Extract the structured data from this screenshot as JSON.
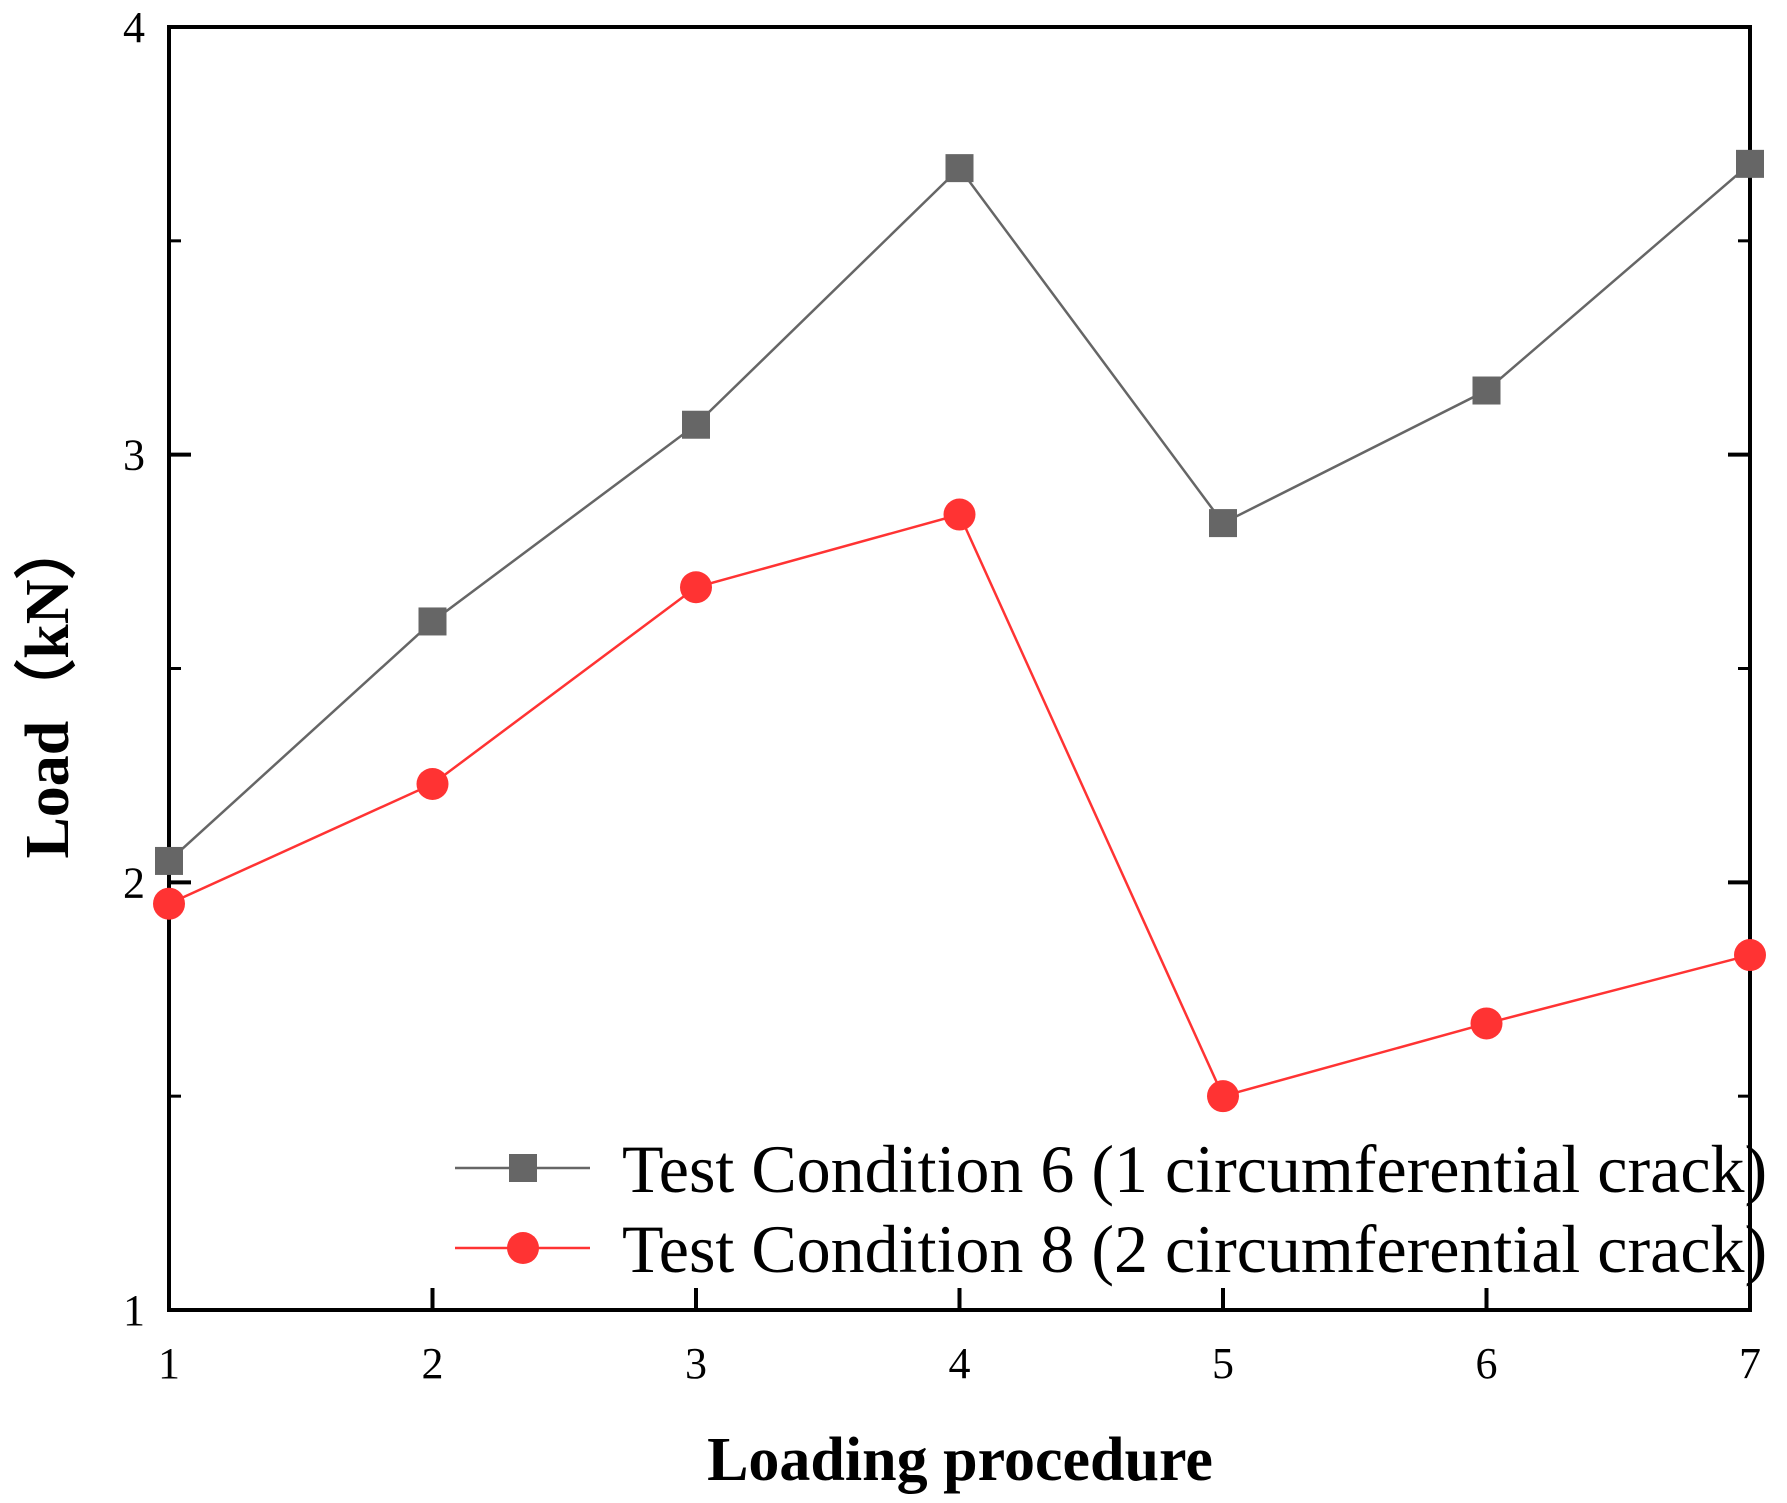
{
  "chart_data": {
    "type": "line",
    "title": "",
    "xlabel": "Loading procedure",
    "ylabel": "Load（kN）",
    "x": [
      1,
      2,
      3,
      4,
      5,
      6,
      7
    ],
    "x_tick_labels": [
      "1",
      "2",
      "3",
      "4",
      "5",
      "6",
      "7"
    ],
    "xlim": [
      1,
      7
    ],
    "ylim": [
      1,
      4
    ],
    "y_major_ticks": [
      1,
      2,
      3,
      4
    ],
    "y_tick_labels": [
      "1",
      "2",
      "3",
      "4"
    ],
    "y_minor_ticks": [
      1.5,
      2.5,
      3.5
    ],
    "grid": false,
    "legend_position": "bottom-right",
    "series": [
      {
        "name": "Test Condition 6 (1 circumferential crack)",
        "marker": "square",
        "color": "#666666",
        "values": [
          2.05,
          2.61,
          3.07,
          3.67,
          2.84,
          3.15,
          3.68
        ]
      },
      {
        "name": "Test Condition 8 (2 circumferential crack)",
        "marker": "circle",
        "color": "#ff3333",
        "values": [
          1.95,
          2.23,
          2.69,
          2.86,
          1.5,
          1.67,
          1.83
        ]
      }
    ]
  }
}
